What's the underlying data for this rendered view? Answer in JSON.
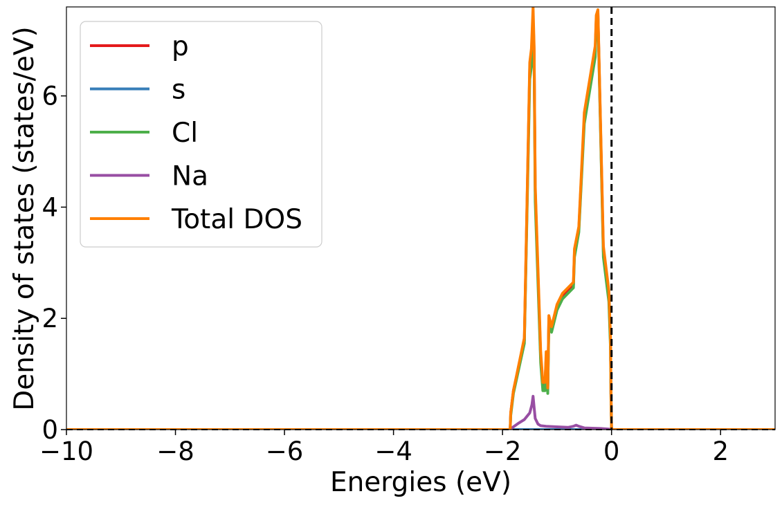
{
  "chart_data": {
    "type": "line",
    "title": "",
    "xlabel": "Energies (eV)",
    "ylabel": "Density of states (states/eV)",
    "xlim": [
      -10,
      3
    ],
    "ylim": [
      0,
      7.6
    ],
    "xticks": [
      -10,
      -8,
      -6,
      -4,
      -2,
      0,
      2
    ],
    "yticks": [
      0,
      2,
      4,
      6
    ],
    "xtick_labels": [
      "−10",
      "−8",
      "−6",
      "−4",
      "−2",
      "0",
      "2"
    ],
    "ytick_labels": [
      "0",
      "2",
      "4",
      "6"
    ],
    "fermi_level": 0,
    "legend_position": "top-left",
    "series": [
      {
        "name": "p",
        "color": "#e41a1c",
        "x": [
          -10,
          -1.86,
          -1.85,
          -1.8,
          -1.6,
          -1.5,
          -1.46,
          -1.44,
          -1.42,
          -1.4,
          -1.3,
          -1.26,
          -1.22,
          -1.2,
          -1.19,
          -1.17,
          -1.15,
          -1.1,
          -1.0,
          -0.9,
          -0.7,
          -0.68,
          -0.6,
          -0.5,
          -0.4,
          -0.3,
          -0.28,
          -0.25,
          -0.15,
          -0.05,
          -0.02,
          -0.01,
          0,
          3
        ],
        "values": [
          0,
          0,
          0.3,
          0.7,
          1.6,
          6.5,
          6.8,
          7.4,
          6.8,
          4.3,
          1.3,
          0.8,
          0.8,
          1.3,
          1.3,
          0.7,
          2.0,
          1.8,
          2.2,
          2.4,
          2.6,
          3.2,
          3.6,
          5.6,
          6.2,
          6.8,
          7.4,
          7.5,
          3.2,
          2.4,
          1.6,
          0.6,
          0,
          0
        ]
      },
      {
        "name": "s",
        "color": "#377eb8",
        "x": [
          -10,
          3
        ],
        "values": [
          0,
          0
        ]
      },
      {
        "name": "Cl",
        "color": "#4daf4a",
        "x": [
          -10,
          -1.86,
          -1.85,
          -1.8,
          -1.6,
          -1.5,
          -1.46,
          -1.44,
          -1.42,
          -1.4,
          -1.3,
          -1.26,
          -1.22,
          -1.2,
          -1.19,
          -1.17,
          -1.15,
          -1.1,
          -1.0,
          -0.9,
          -0.7,
          -0.68,
          -0.6,
          -0.5,
          -0.4,
          -0.3,
          -0.28,
          -0.25,
          -0.15,
          -0.05,
          -0.02,
          -0.01,
          0,
          3
        ],
        "values": [
          0,
          0,
          0.25,
          0.65,
          1.55,
          6.3,
          6.6,
          7.2,
          6.6,
          4.1,
          1.2,
          0.7,
          0.7,
          1.2,
          1.2,
          0.65,
          1.9,
          1.75,
          2.15,
          2.35,
          2.55,
          3.1,
          3.55,
          5.5,
          6.1,
          6.7,
          7.3,
          7.45,
          3.1,
          2.3,
          1.5,
          0.55,
          0,
          0
        ]
      },
      {
        "name": "Na",
        "color": "#984ea3",
        "x": [
          -10,
          -1.86,
          -1.8,
          -1.7,
          -1.6,
          -1.5,
          -1.46,
          -1.44,
          -1.42,
          -1.4,
          -1.35,
          -1.3,
          -1.2,
          -1.0,
          -0.8,
          -0.7,
          -0.65,
          -0.6,
          -0.5,
          -0.2,
          -0.05,
          0,
          3
        ],
        "values": [
          0,
          0,
          0.05,
          0.12,
          0.18,
          0.3,
          0.45,
          0.6,
          0.4,
          0.2,
          0.1,
          0.07,
          0.06,
          0.05,
          0.04,
          0.06,
          0.08,
          0.06,
          0.03,
          0.02,
          0.01,
          0,
          0
        ]
      },
      {
        "name": "Total DOS",
        "color": "#ff7f00",
        "x": [
          -10,
          -1.86,
          -1.85,
          -1.8,
          -1.6,
          -1.5,
          -1.47,
          -1.44,
          -1.42,
          -1.4,
          -1.3,
          -1.26,
          -1.22,
          -1.2,
          -1.19,
          -1.17,
          -1.15,
          -1.1,
          -1.0,
          -0.9,
          -0.7,
          -0.68,
          -0.6,
          -0.5,
          -0.4,
          -0.3,
          -0.28,
          -0.25,
          -0.15,
          -0.05,
          -0.02,
          -0.01,
          0,
          3
        ],
        "values": [
          0,
          0,
          0.3,
          0.7,
          1.65,
          6.6,
          6.85,
          7.6,
          6.9,
          4.4,
          1.4,
          0.85,
          0.85,
          1.4,
          1.4,
          0.75,
          2.05,
          1.85,
          2.25,
          2.45,
          2.65,
          3.25,
          3.65,
          5.7,
          6.3,
          6.9,
          7.45,
          7.55,
          3.3,
          2.5,
          1.7,
          0.65,
          0,
          0
        ]
      }
    ]
  }
}
